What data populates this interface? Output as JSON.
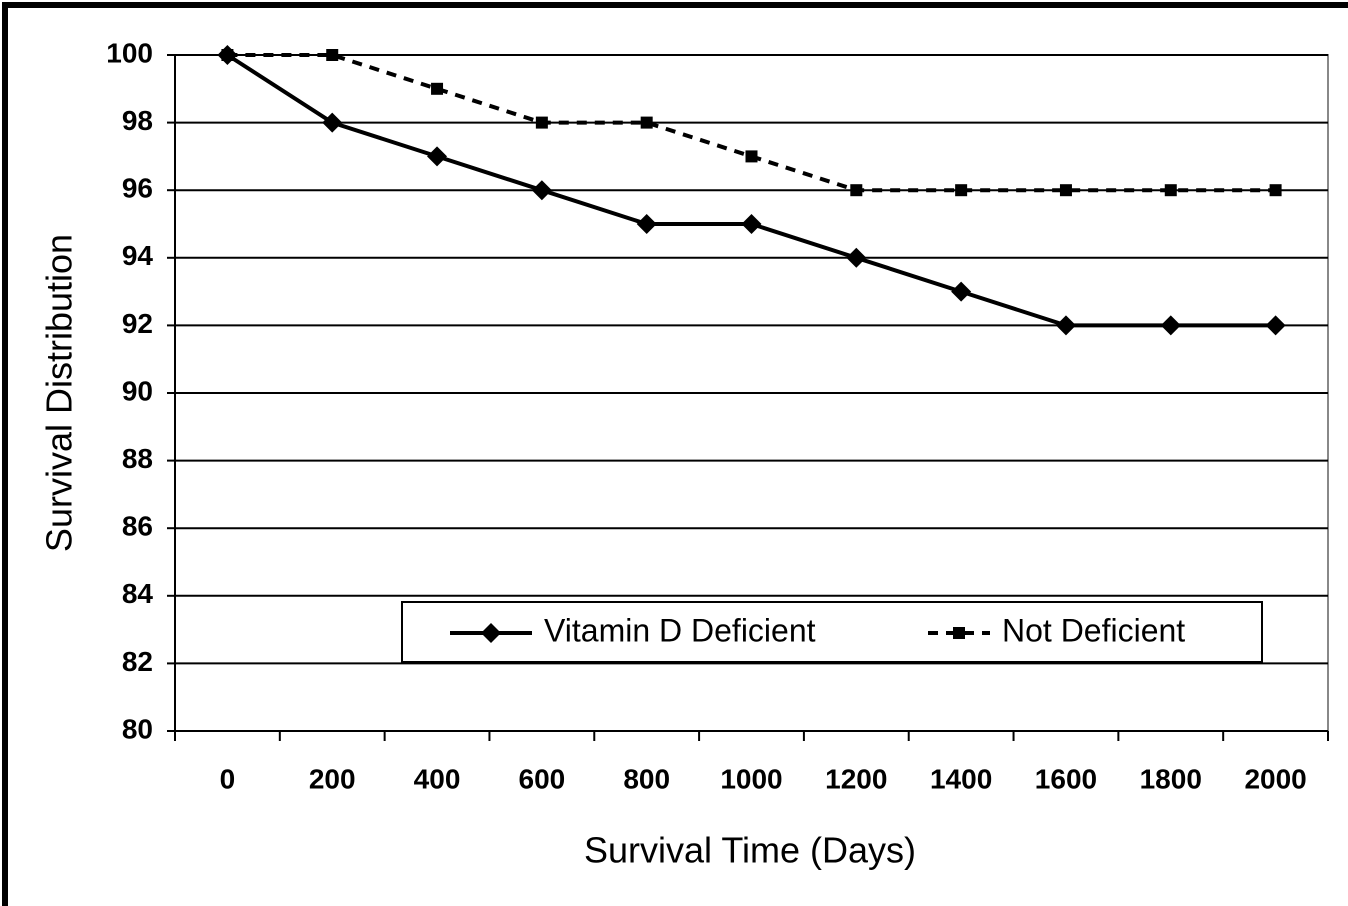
{
  "chart_data": {
    "type": "line",
    "x_label": "Survival Time (Days)",
    "y_label": "Survival Distribution",
    "categories": [
      "0",
      "200",
      "400",
      "600",
      "800",
      "1000",
      "1200",
      "1400",
      "1600",
      "1800",
      "2000"
    ],
    "series": [
      {
        "name": "Vitamin D Deficient",
        "color": "#000000",
        "linestyle": "solid",
        "marker": "diamond",
        "values": [
          100,
          98,
          97,
          96,
          95,
          95,
          94,
          93,
          92,
          92,
          92
        ]
      },
      {
        "name": "Not Deficient",
        "color": "#000000",
        "linestyle": "dashed",
        "marker": "square",
        "values": [
          100,
          100,
          99,
          98,
          98,
          97,
          96,
          96,
          96,
          96,
          96
        ]
      }
    ],
    "ylim": [
      80,
      100
    ],
    "yticks": [
      80,
      82,
      84,
      86,
      88,
      90,
      92,
      94,
      96,
      98,
      100
    ],
    "grid": true,
    "legend": "bottom"
  }
}
